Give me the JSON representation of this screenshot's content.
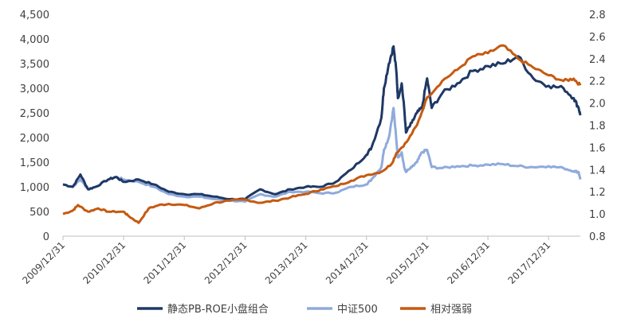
{
  "chart_data": {
    "type": "line",
    "title": "",
    "xlabel": "",
    "ylabel": "",
    "y2label": "",
    "x_ticks": [
      "2009/12/31",
      "2010/12/31",
      "2011/12/31",
      "2012/12/31",
      "2013/12/31",
      "2014/12/31",
      "2015/12/31",
      "2016/12/31",
      "2017/12/31"
    ],
    "y_left": {
      "ylim": [
        0,
        4500
      ],
      "ticks": [
        "0",
        "500",
        "1,000",
        "1,500",
        "2,000",
        "2,500",
        "3,000",
        "3,500",
        "4,000",
        "4,500"
      ],
      "tick_values": [
        0,
        500,
        1000,
        1500,
        2000,
        2500,
        3000,
        3500,
        4000,
        4500
      ]
    },
    "y_right": {
      "ylim": [
        0.8,
        2.8
      ],
      "ticks": [
        "0.8",
        "1.0",
        "1.2",
        "1.4",
        "1.6",
        "1.8",
        "2.0",
        "2.2",
        "2.4",
        "2.6",
        "2.8"
      ],
      "tick_values": [
        0.8,
        1.0,
        1.2,
        1.4,
        1.6,
        1.8,
        2.0,
        2.2,
        2.4,
        2.6,
        2.8
      ]
    },
    "legend_position": "bottom",
    "grid": false,
    "series": [
      {
        "name": "静态PB-ROE小盘组合",
        "axis": "left",
        "color": "#1f3864",
        "x": [
          "2009-12-31",
          "2010-02-28",
          "2010-04-15",
          "2010-05-31",
          "2010-07-15",
          "2010-09-30",
          "2010-11-15",
          "2010-12-31",
          "2011-03-31",
          "2011-06-30",
          "2011-09-30",
          "2011-12-31",
          "2012-03-31",
          "2012-06-30",
          "2012-09-30",
          "2012-12-31",
          "2013-03-31",
          "2013-06-30",
          "2013-09-30",
          "2013-12-31",
          "2014-03-31",
          "2014-06-30",
          "2014-09-30",
          "2014-12-31",
          "2015-01-31",
          "2015-03-31",
          "2015-04-15",
          "2015-05-15",
          "2015-06-12",
          "2015-06-30",
          "2015-07-08",
          "2015-07-31",
          "2015-08-15",
          "2015-08-26",
          "2015-09-30",
          "2015-10-31",
          "2015-11-30",
          "2015-12-31",
          "2016-01-28",
          "2016-03-31",
          "2016-06-30",
          "2016-09-30",
          "2016-12-31",
          "2017-03-31",
          "2017-06-30",
          "2017-09-30",
          "2017-12-31",
          "2018-03-31",
          "2018-05-31",
          "2018-06-30",
          "2018-07-10"
        ],
        "values": [
          1050,
          1000,
          1250,
          950,
          1000,
          1150,
          1200,
          1100,
          1150,
          1050,
          900,
          850,
          850,
          800,
          750,
          750,
          950,
          850,
          950,
          1000,
          1000,
          1100,
          1350,
          1650,
          1800,
          2400,
          3000,
          3500,
          3850,
          3300,
          2800,
          3100,
          2600,
          2100,
          2300,
          2500,
          2600,
          3200,
          2600,
          2900,
          3100,
          3350,
          3450,
          3500,
          3650,
          3200,
          3050,
          3000,
          2800,
          2600,
          2450
        ]
      },
      {
        "name": "中证500",
        "axis": "left",
        "color": "#8faadc",
        "x": [
          "2009-12-31",
          "2010-02-28",
          "2010-04-15",
          "2010-05-31",
          "2010-07-15",
          "2010-09-30",
          "2010-11-15",
          "2010-12-31",
          "2011-03-31",
          "2011-06-30",
          "2011-09-30",
          "2011-12-31",
          "2012-03-31",
          "2012-06-30",
          "2012-09-30",
          "2012-12-31",
          "2013-03-31",
          "2013-06-30",
          "2013-09-30",
          "2013-12-31",
          "2014-03-31",
          "2014-06-30",
          "2014-09-30",
          "2014-12-31",
          "2015-01-31",
          "2015-03-31",
          "2015-04-15",
          "2015-05-15",
          "2015-06-12",
          "2015-06-30",
          "2015-07-08",
          "2015-07-31",
          "2015-08-15",
          "2015-08-26",
          "2015-09-30",
          "2015-10-31",
          "2015-11-30",
          "2015-12-31",
          "2016-01-28",
          "2016-03-31",
          "2016-06-30",
          "2016-09-30",
          "2016-12-31",
          "2017-03-31",
          "2017-06-30",
          "2017-09-30",
          "2017-12-31",
          "2018-03-31",
          "2018-05-31",
          "2018-06-30",
          "2018-07-10"
        ],
        "values": [
          1050,
          1000,
          1150,
          950,
          1000,
          1150,
          1200,
          1150,
          1100,
          1000,
          850,
          800,
          800,
          750,
          720,
          700,
          850,
          800,
          900,
          900,
          870,
          880,
          1000,
          1050,
          1150,
          1400,
          1750,
          2000,
          2600,
          1900,
          1600,
          1700,
          1400,
          1300,
          1400,
          1500,
          1700,
          1750,
          1400,
          1380,
          1420,
          1430,
          1450,
          1460,
          1420,
          1400,
          1420,
          1380,
          1320,
          1300,
          1150
        ]
      },
      {
        "name": "相对强弱",
        "axis": "right",
        "color": "#c55a11",
        "x": [
          "2009-12-31",
          "2010-02-28",
          "2010-03-31",
          "2010-05-31",
          "2010-07-31",
          "2010-09-30",
          "2010-12-31",
          "2011-01-31",
          "2011-03-31",
          "2011-05-31",
          "2011-07-31",
          "2011-09-30",
          "2011-12-31",
          "2012-03-31",
          "2012-06-30",
          "2012-09-30",
          "2012-12-31",
          "2013-03-31",
          "2013-06-30",
          "2013-09-30",
          "2013-12-31",
          "2014-03-31",
          "2014-06-30",
          "2014-09-30",
          "2014-12-31",
          "2015-03-31",
          "2015-05-31",
          "2015-06-30",
          "2015-08-31",
          "2015-10-31",
          "2015-12-31",
          "2016-03-31",
          "2016-06-30",
          "2016-09-30",
          "2016-12-31",
          "2017-03-31",
          "2017-06-30",
          "2017-09-30",
          "2017-12-31",
          "2018-03-31",
          "2018-05-31",
          "2018-07-10"
        ],
        "values": [
          1.0,
          1.03,
          1.08,
          1.02,
          1.05,
          1.02,
          1.02,
          0.98,
          0.92,
          1.05,
          1.08,
          1.09,
          1.08,
          1.05,
          1.1,
          1.12,
          1.13,
          1.1,
          1.12,
          1.15,
          1.18,
          1.22,
          1.25,
          1.3,
          1.35,
          1.38,
          1.45,
          1.55,
          1.65,
          1.8,
          2.05,
          2.2,
          2.3,
          2.42,
          2.45,
          2.52,
          2.4,
          2.32,
          2.25,
          2.2,
          2.22,
          2.16
        ]
      }
    ]
  }
}
